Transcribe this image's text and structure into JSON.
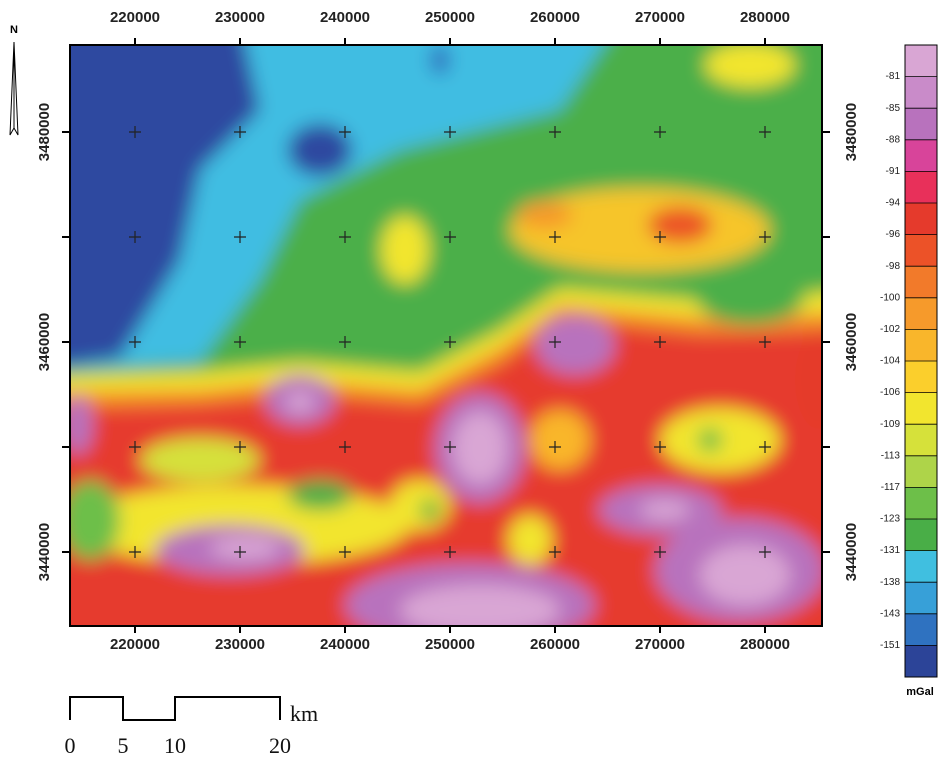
{
  "map": {
    "north_label": "N",
    "x_ticks": [
      220000,
      230000,
      240000,
      250000,
      260000,
      270000,
      280000
    ],
    "y_ticks": [
      3480000,
      3460000,
      3440000
    ],
    "scale_bar": {
      "unit": "km",
      "labels": [
        "0",
        "5",
        "10",
        "20"
      ]
    },
    "colorbar": {
      "unit": "mGal",
      "labels": [
        -81,
        -85,
        -88,
        -91,
        -94,
        -96,
        -98,
        -100,
        -102,
        -104,
        -106,
        -109,
        -113,
        -117,
        -123,
        -131,
        -138,
        -143,
        -151
      ],
      "colors": [
        "#d9a6d4",
        "#c98bc9",
        "#b872bd",
        "#d8449a",
        "#e8305a",
        "#e53a2c",
        "#ec5228",
        "#f27a2a",
        "#f69a2b",
        "#f9b62b",
        "#fbcf2c",
        "#f2e52e",
        "#d6e13a",
        "#aed449",
        "#6dbf49",
        "#49ae47",
        "#40bfe0",
        "#37a0d8",
        "#2f72c0",
        "#2c4498"
      ]
    }
  }
}
